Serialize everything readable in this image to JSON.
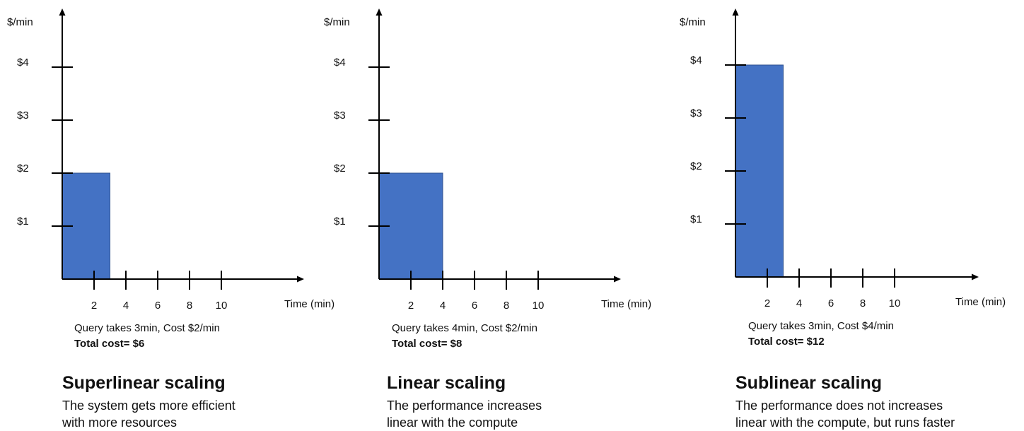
{
  "panels": [
    {
      "y_axis_unit": "$/min",
      "x_axis_label": "Time (min)",
      "y_ticks": [
        "$1",
        "$2",
        "$3",
        "$4"
      ],
      "x_ticks": [
        "2",
        "4",
        "6",
        "8",
        "10"
      ],
      "bar": {
        "duration_min": 3,
        "cost_per_min": 2,
        "color": "#4472C4"
      },
      "query_text": "Query takes 3min, Cost $2/min",
      "total_cost": "Total cost= $6",
      "title": "Superlinear scaling",
      "description_lines": [
        "The system gets more efficient",
        "with more resources"
      ]
    },
    {
      "y_axis_unit": "$/min",
      "x_axis_label": "Time (min)",
      "y_ticks": [
        "$1",
        "$2",
        "$3",
        "$4"
      ],
      "x_ticks": [
        "2",
        "4",
        "6",
        "8",
        "10"
      ],
      "bar": {
        "duration_min": 4,
        "cost_per_min": 2,
        "color": "#4472C4"
      },
      "query_text": "Query takes 4min, Cost $2/min",
      "total_cost": "Total cost= $8",
      "title": "Linear scaling",
      "description_lines": [
        "The performance increases",
        "linear with the compute"
      ]
    },
    {
      "y_axis_unit": "$/min",
      "x_axis_label": "Time (min)",
      "y_ticks": [
        "$1",
        "$2",
        "$3",
        "$4"
      ],
      "x_ticks": [
        "2",
        "4",
        "6",
        "8",
        "10"
      ],
      "bar": {
        "duration_min": 3,
        "cost_per_min": 4,
        "color": "#4472C4"
      },
      "query_text": "Query takes 3min, Cost $4/min",
      "total_cost": "Total cost= $12",
      "title": "Sublinear scaling",
      "description_lines": [
        "The performance does not increases",
        "linear with the compute, but runs faster"
      ]
    }
  ]
}
